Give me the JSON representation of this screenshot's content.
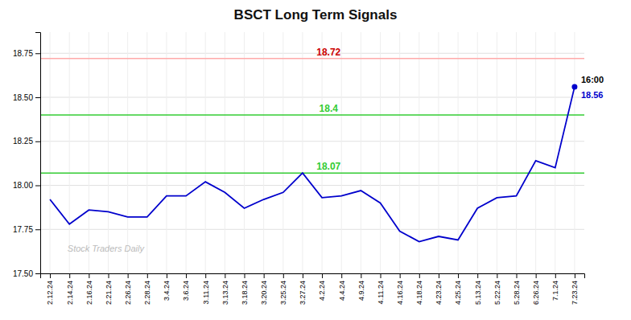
{
  "chart_data": {
    "type": "line",
    "title": "BSCT Long Term Signals",
    "categories": [
      "2.12.24",
      "2.14.24",
      "2.16.24",
      "2.21.24",
      "2.26.24",
      "2.28.24",
      "3.4.24",
      "3.6.24",
      "3.11.24",
      "3.13.24",
      "3.18.24",
      "3.20.24",
      "3.25.24",
      "3.27.24",
      "4.2.24",
      "4.4.24",
      "4.9.24",
      "4.11.24",
      "4.16.24",
      "4.18.24",
      "4.23.24",
      "4.25.24",
      "5.13.24",
      "5.22.24",
      "5.28.24",
      "6.26.24",
      "7.1.24",
      "7.23.24"
    ],
    "values": [
      17.92,
      17.78,
      17.86,
      17.85,
      17.82,
      17.82,
      17.94,
      17.94,
      18.02,
      17.96,
      17.87,
      17.92,
      17.96,
      18.07,
      17.93,
      17.94,
      17.97,
      17.9,
      17.74,
      17.68,
      17.71,
      17.69,
      17.87,
      17.93,
      17.94,
      18.14,
      18.1,
      18.56
    ],
    "color": "#0000cc",
    "ylim": [
      17.5,
      18.87
    ],
    "yticks": [
      {
        "value": 17.5,
        "label": "17.50"
      },
      17.75,
      {
        "value": 18.0,
        "label": "18.00"
      },
      18.25,
      {
        "value": 18.5,
        "label": "18.50"
      },
      18.75
    ],
    "grid": true,
    "hlines": [
      {
        "value": 18.72,
        "label": "18.72",
        "color": "#ffaaaa",
        "label_color": "#cc0000"
      },
      {
        "value": 18.4,
        "label": "18.4",
        "color": "#33cc33"
      },
      {
        "value": 18.07,
        "label": "18.07",
        "color": "#33cc33"
      }
    ],
    "annotations": [
      {
        "text": "16:00",
        "color": "#000000"
      },
      {
        "text": "18.56",
        "color": "#0000cc"
      },
      {
        "text": "Stock Traders Daily",
        "color": "#bbbbbb"
      }
    ]
  }
}
